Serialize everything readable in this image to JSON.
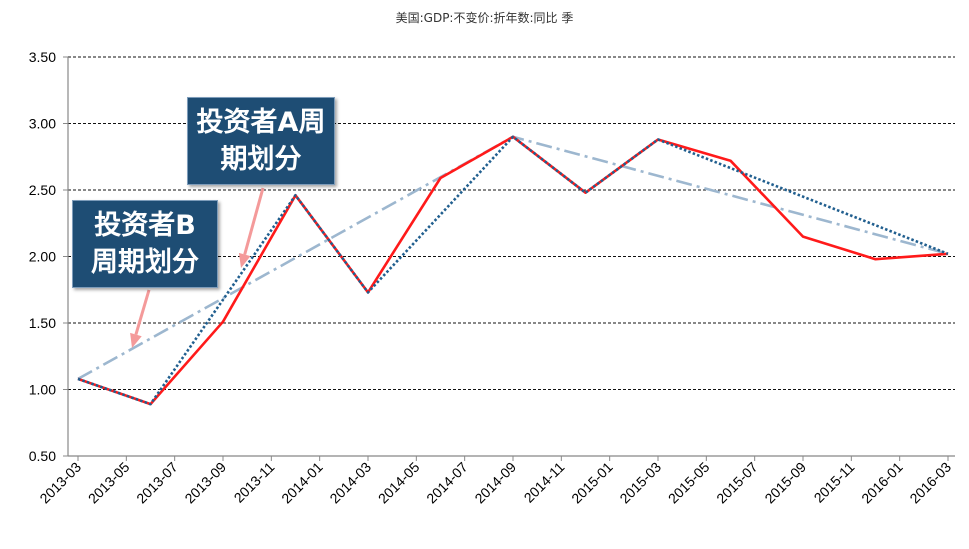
{
  "chart_data": {
    "type": "line",
    "title": "美国:GDP:不变价:折年数:同比 季",
    "xlim": [
      "2013-03",
      "2016-03"
    ],
    "ylim": [
      0.5,
      3.5
    ],
    "grid": true,
    "x_ticks": [
      "2013-03",
      "2013-05",
      "2013-07",
      "2013-09",
      "2013-11",
      "2014-01",
      "2014-03",
      "2014-05",
      "2014-07",
      "2014-09",
      "2014-11",
      "2015-01",
      "2015-03",
      "2015-05",
      "2015-07",
      "2015-09",
      "2015-11",
      "2016-01",
      "2016-03"
    ],
    "y_ticks": [
      "3.50",
      "3.00",
      "2.50",
      "2.00",
      "1.50",
      "1.00",
      "0.50"
    ],
    "series": [
      {
        "style": "dash-dot",
        "color": "#9db7cf",
        "points": [
          {
            "x": "2013-03",
            "y": 1.08
          },
          {
            "x": "2014-09",
            "y": 2.9
          },
          {
            "x": "2016-03",
            "y": 2.02
          }
        ]
      },
      {
        "style": "solid",
        "color": "#ff1a1a",
        "points": [
          {
            "x": "2013-03",
            "y": 1.08
          },
          {
            "x": "2013-06",
            "y": 0.89
          },
          {
            "x": "2013-09",
            "y": 1.51
          },
          {
            "x": "2013-12",
            "y": 2.46
          },
          {
            "x": "2014-03",
            "y": 1.73
          },
          {
            "x": "2014-06",
            "y": 2.59
          },
          {
            "x": "2014-09",
            "y": 2.9
          },
          {
            "x": "2014-12",
            "y": 2.48
          },
          {
            "x": "2015-03",
            "y": 2.88
          },
          {
            "x": "2015-06",
            "y": 2.72
          },
          {
            "x": "2015-09",
            "y": 2.15
          },
          {
            "x": "2015-12",
            "y": 1.98
          },
          {
            "x": "2016-03",
            "y": 2.02
          }
        ]
      },
      {
        "style": "dotted",
        "color": "#215f8f",
        "points": [
          {
            "x": "2013-03",
            "y": 1.08
          },
          {
            "x": "2013-06",
            "y": 0.89
          },
          {
            "x": "2013-12",
            "y": 2.46
          },
          {
            "x": "2014-03",
            "y": 1.73
          },
          {
            "x": "2014-09",
            "y": 2.9
          },
          {
            "x": "2014-12",
            "y": 2.48
          },
          {
            "x": "2015-03",
            "y": 2.88
          },
          {
            "x": "2016-03",
            "y": 2.02
          }
        ]
      }
    ],
    "annotations": [
      {
        "lines": [
          "投资者A周",
          "期划分"
        ],
        "box_color": "#1e4d74",
        "arrow_color": "#f49a9a"
      },
      {
        "lines": [
          "投资者B",
          "周期划分"
        ],
        "box_color": "#1e4d74",
        "arrow_color": "#f49a9a"
      }
    ]
  }
}
